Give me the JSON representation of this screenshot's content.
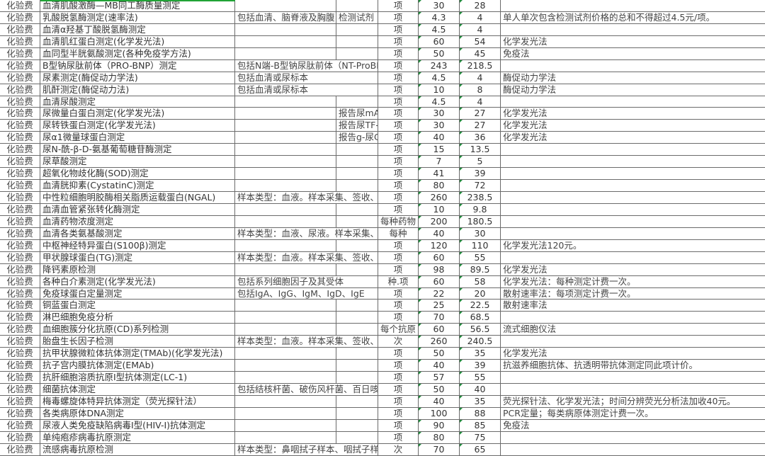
{
  "colors": {
    "selection": "#21a336",
    "grid": "#6b6b6b",
    "text_marker": "#1e8a3a"
  },
  "rows": [
    {
      "cat": "化验费",
      "name": "血清肌酸激酶—MB同工酶质量测定",
      "desc": "",
      "extra": "",
      "unit": "项",
      "p1": "30",
      "p2": "28",
      "note": ""
    },
    {
      "cat": "化验费",
      "name": "乳酸脱氢酶测定(速率法)",
      "desc": "包括血清、脑脊液及胸腹",
      "extra": "检测试剂",
      "unit": "项",
      "p1": "4.3",
      "p2": "4",
      "note": "单人单次包含检测试剂价格的总和不得超过4.5元/项。"
    },
    {
      "cat": "化验费",
      "name": "血清α羟基丁酸脱氢酶测定",
      "desc": "",
      "extra": "",
      "unit": "项",
      "p1": "4.5",
      "p2": "4",
      "note": ""
    },
    {
      "cat": "化验费",
      "name": "血清肌红蛋白测定(化学发光法)",
      "desc": "",
      "extra": "",
      "unit": "项",
      "p1": "60",
      "p2": "54",
      "note": "化学发光法"
    },
    {
      "cat": "化验费",
      "name": "血同型半胱氨酸测定(各种免疫学方法)",
      "desc": "",
      "extra": "",
      "unit": "项",
      "p1": "50",
      "p2": "45",
      "note": "免疫法"
    },
    {
      "cat": "化验费",
      "name": "B型钠尿肽前体（PRO-BNP）测定",
      "desc": "包括N端-B型钠尿肽前体（NT-ProBNP）",
      "extra": "",
      "unit": "项",
      "p1": "243",
      "p2": "218.5",
      "note": ""
    },
    {
      "cat": "化验费",
      "name": "尿素测定(酶促动力学法)",
      "desc": "包括血清或尿标本",
      "extra": "",
      "unit": "项",
      "p1": "4.5",
      "p2": "4",
      "note": "酶促动力学法"
    },
    {
      "cat": "化验费",
      "name": "肌酐测定(酶促动力法)",
      "desc": "包括血清或尿标本",
      "extra": "",
      "unit": "项",
      "p1": "10",
      "p2": "8",
      "note": "酶促动力学法"
    },
    {
      "cat": "化验费",
      "name": "血清尿酸测定",
      "desc": "",
      "extra": "",
      "unit": "项",
      "p1": "4.5",
      "p2": "4",
      "note": ""
    },
    {
      "cat": "化验费",
      "name": "尿微量白蛋白测定(化学发光法)",
      "desc": "",
      "extra": "报告尿mA",
      "unit": "项",
      "p1": "30",
      "p2": "27",
      "note": "化学发光法"
    },
    {
      "cat": "化验费",
      "name": "尿转铁蛋白测定(化学发光法)",
      "desc": "",
      "extra": "报告尿TF-",
      "unit": "项",
      "p1": "30",
      "p2": "27",
      "note": "化学发光法"
    },
    {
      "cat": "化验费",
      "name": "尿α1微量球蛋白测定",
      "desc": "",
      "extra": "报告g-尿C",
      "unit": "项",
      "p1": "40",
      "p2": "36",
      "note": "化学发光法"
    },
    {
      "cat": "化验费",
      "name": "尿N-酰-β-D-氨基葡萄糖苷酶测定",
      "desc": "",
      "extra": "",
      "unit": "项",
      "p1": "15",
      "p2": "13.5",
      "note": ""
    },
    {
      "cat": "化验费",
      "name": "尿草酸测定",
      "desc": "",
      "extra": "",
      "unit": "项",
      "p1": "7",
      "p2": "5",
      "note": ""
    },
    {
      "cat": "化验费",
      "name": "超氧化物歧化酶(SOD)测定",
      "desc": "",
      "extra": "",
      "unit": "项",
      "p1": "41",
      "p2": "39",
      "note": ""
    },
    {
      "cat": "化验费",
      "name": "血清胱抑素(CystatinC)测定",
      "desc": "",
      "extra": "",
      "unit": "项",
      "p1": "80",
      "p2": "72",
      "note": ""
    },
    {
      "cat": "化验费",
      "name": "中性粒细胞明胶酶相关脂质运载蛋白(NGAL)",
      "desc": "样本类型：血液。样本采集、签收、",
      "extra": "",
      "unit": "项",
      "p1": "260",
      "p2": "238.5",
      "note": ""
    },
    {
      "cat": "化验费",
      "name": "血清血管紧张转化酶测定",
      "desc": "",
      "extra": "",
      "unit": "项",
      "p1": "10",
      "p2": "9.8",
      "note": ""
    },
    {
      "cat": "化验费",
      "name": "血清药物浓度测定",
      "desc": "",
      "extra": "",
      "unit": "每种药物",
      "p1": "200",
      "p2": "180.5",
      "note": ""
    },
    {
      "cat": "化验费",
      "name": "血清各类氨基酸测定",
      "desc": "样本类型：血液、尿液。样本采集、",
      "extra": "",
      "unit": "每种",
      "p1": "40",
      "p2": "30",
      "note": ""
    },
    {
      "cat": "化验费",
      "name": "中枢神经特异蛋白(S100β)测定",
      "desc": "",
      "extra": "",
      "unit": "项",
      "p1": "120",
      "p2": "110",
      "note": "化学发光法120元。"
    },
    {
      "cat": "化验费",
      "name": "甲状腺球蛋白(TG)测定",
      "desc": "样本类型：血液。样本采集、签收、",
      "extra": "",
      "unit": "项",
      "p1": "60",
      "p2": "55",
      "note": ""
    },
    {
      "cat": "化验费",
      "name": "降钙素原检测",
      "desc": "",
      "extra": "",
      "unit": "项",
      "p1": "98",
      "p2": "89.5",
      "note": "化学发光法"
    },
    {
      "cat": "化验费",
      "name": "各种白介素测定(化学发光法)",
      "desc": "包括系列细胞因子及其受体",
      "extra": "",
      "unit": "种.项",
      "p1": "60",
      "p2": "58",
      "note": "化学发光法：每种测定计费一次。"
    },
    {
      "cat": "化验费",
      "name": "免疫球蛋白定量测定",
      "desc": "包括IgA、IgG、IgM、IgD、IgE",
      "extra": "",
      "unit": "项",
      "p1": "22",
      "p2": "20",
      "note": "散射速率法：每项测定计费一次。"
    },
    {
      "cat": "化验费",
      "name": "铜蓝蛋白测定",
      "desc": "",
      "extra": "",
      "unit": "项",
      "p1": "25",
      "p2": "22.5",
      "note": "散射速率法"
    },
    {
      "cat": "化验费",
      "name": "淋巴细胞免疫分析",
      "desc": "",
      "extra": "",
      "unit": "项",
      "p1": "70",
      "p2": "68.5",
      "note": ""
    },
    {
      "cat": "化验费",
      "name": "血细胞簇分化抗原(CD)系列检测",
      "desc": "",
      "extra": "",
      "unit": "每个抗原",
      "p1": "60",
      "p2": "56.5",
      "note": "流式细胞仪法"
    },
    {
      "cat": "化验费",
      "name": "胎盘生长因子检测",
      "desc": "样本类型：血液。样本采集、签收、",
      "extra": "",
      "unit": "次",
      "p1": "260",
      "p2": "240.5",
      "note": ""
    },
    {
      "cat": "化验费",
      "name": "抗甲状腺微粒体抗体测定(TMAb)(化学发光法)",
      "desc": "",
      "extra": "",
      "unit": "项",
      "p1": "50",
      "p2": "35",
      "note": "化学发光法"
    },
    {
      "cat": "化验费",
      "name": "抗子宫内膜抗体测定(EMAb)",
      "desc": "",
      "extra": "",
      "unit": "项",
      "p1": "40",
      "p2": "39",
      "note": "抗滋养细胞抗体、抗透明带抗体测定同此项计价。"
    },
    {
      "cat": "化验费",
      "name": "抗肝细胞溶质抗原I型抗体测定(LC-1)",
      "desc": "",
      "extra": "",
      "unit": "项",
      "p1": "57",
      "p2": "55",
      "note": ""
    },
    {
      "cat": "化验费",
      "name": "细菌抗体测定",
      "desc": "包括结核杆菌、破伤风杆菌、百日咳",
      "extra": "",
      "unit": "项",
      "p1": "50",
      "p2": "40",
      "note": ""
    },
    {
      "cat": "化验费",
      "name": "梅毒螺旋体特异抗体测定（荧光探针法）",
      "desc": "",
      "extra": "",
      "unit": "项",
      "p1": "40",
      "p2": "35",
      "note": "荧光探针法、化学发光法；时间分辨荧光分析法加收40元。"
    },
    {
      "cat": "化验费",
      "name": "各类病原体DNA测定",
      "desc": "",
      "extra": "",
      "unit": "项",
      "p1": "100",
      "p2": "88",
      "note": "PCR定量；每类病原体测定计费一次。"
    },
    {
      "cat": "化验费",
      "name": "尿液人类免疫缺陷病毒I型(HIV-I)抗体测定",
      "desc": "",
      "extra": "",
      "unit": "项",
      "p1": "90",
      "p2": "85",
      "note": "免疫法"
    },
    {
      "cat": "化验费",
      "name": "单纯疱疹病毒抗原测定",
      "desc": "",
      "extra": "",
      "unit": "项",
      "p1": "80",
      "p2": "75",
      "note": ""
    },
    {
      "cat": "化验费",
      "name": "流感病毒抗原检测",
      "desc": "样本类型：鼻咽拭子样本、咽拭子样本",
      "extra": "",
      "unit": "次",
      "p1": "70",
      "p2": "65",
      "note": ""
    }
  ]
}
